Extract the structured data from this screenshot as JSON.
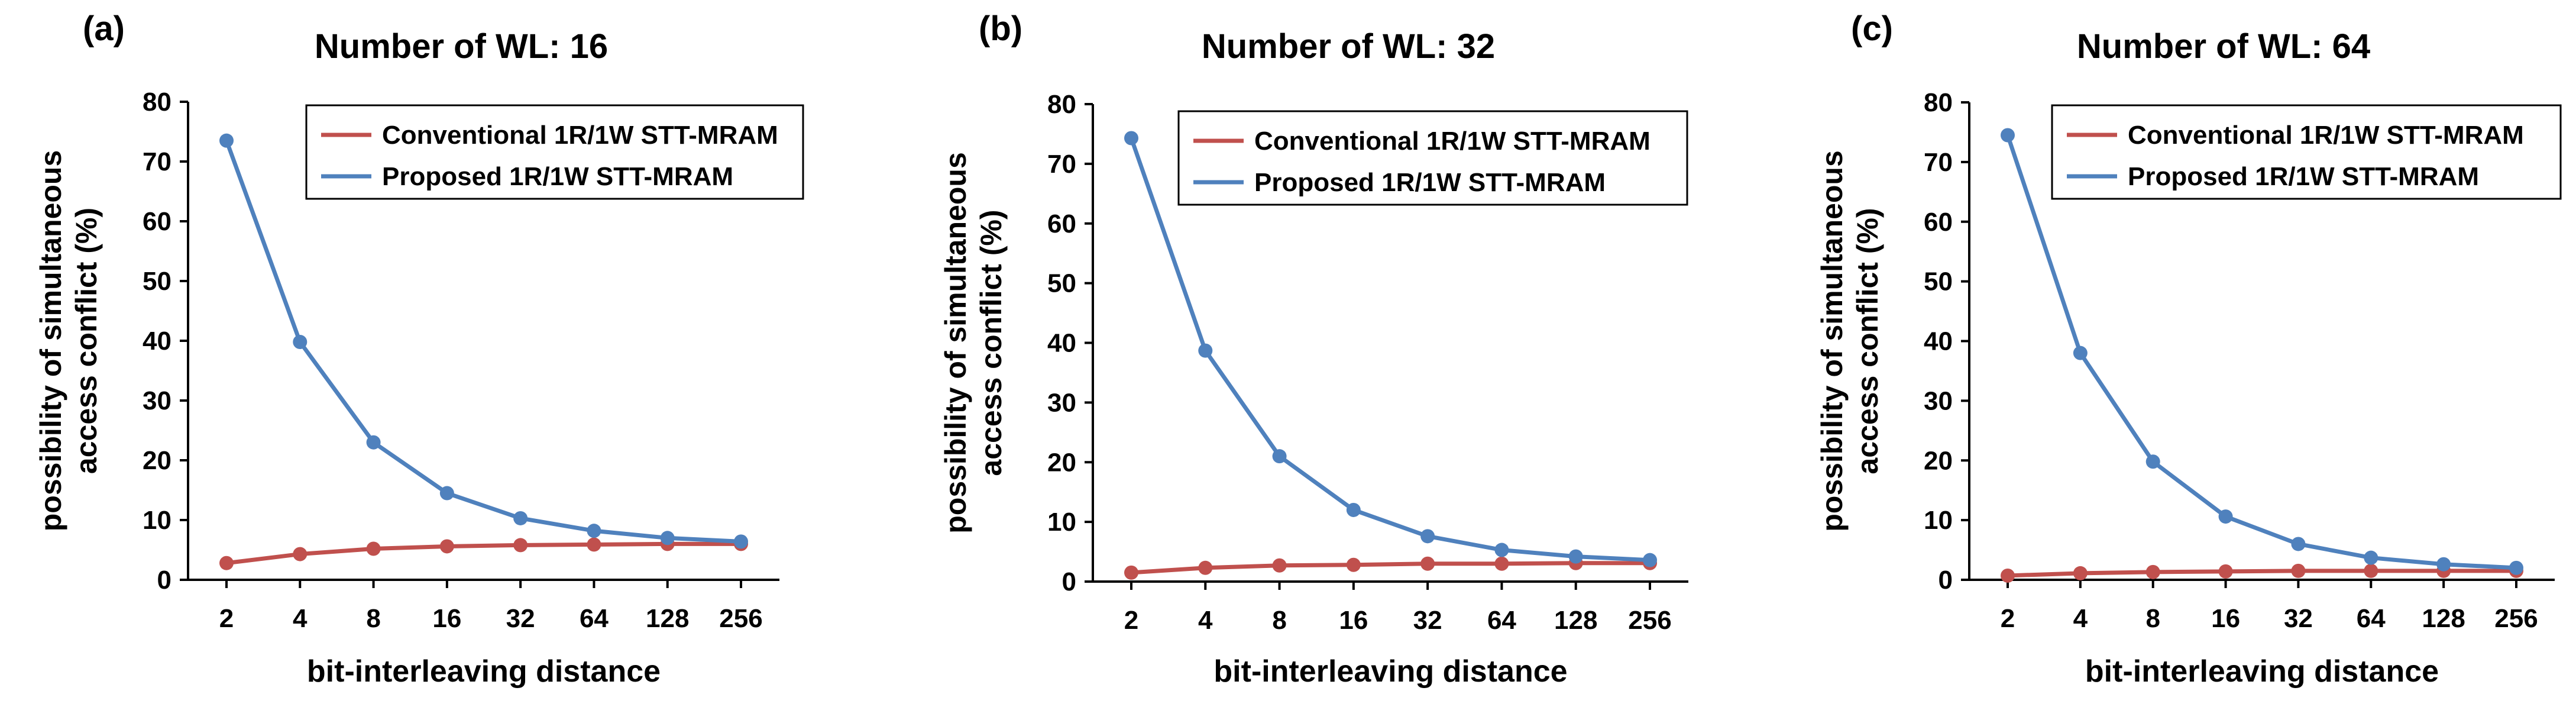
{
  "colors": {
    "conventional": "#c0504d",
    "proposed": "#4f81bd",
    "axis": "#000000"
  },
  "chart_data": [
    {
      "panel_label": "(a)",
      "type": "line",
      "title": "Number of WL: 16",
      "xlabel": "bit-interleaving distance",
      "ylabel_line1": "possibility of simultaneous",
      "ylabel_line2": "access conflict (%)",
      "categories": [
        "2",
        "4",
        "8",
        "16",
        "32",
        "64",
        "128",
        "256"
      ],
      "ylim": [
        0,
        80
      ],
      "yticks": [
        "0",
        "10",
        "20",
        "30",
        "40",
        "50",
        "60",
        "70",
        "80"
      ],
      "legend_position": "top-right",
      "series": [
        {
          "name": "Conventional 1R/1W STT-MRAM",
          "values": [
            2.8,
            4.3,
            5.2,
            5.6,
            5.8,
            5.9,
            6.0,
            6.0
          ]
        },
        {
          "name": "Proposed 1R/1W STT-MRAM",
          "values": [
            73.5,
            39.8,
            23.0,
            14.5,
            10.3,
            8.2,
            7.0,
            6.4
          ]
        }
      ]
    },
    {
      "panel_label": "(b)",
      "type": "line",
      "title": "Number of WL: 32",
      "xlabel": "bit-interleaving distance",
      "ylabel_line1": "possibility of simultaneous",
      "ylabel_line2": "access conflict (%)",
      "categories": [
        "2",
        "4",
        "8",
        "16",
        "32",
        "64",
        "128",
        "256"
      ],
      "ylim": [
        0,
        80
      ],
      "yticks": [
        "0",
        "10",
        "20",
        "30",
        "40",
        "50",
        "60",
        "70",
        "80"
      ],
      "legend_position": "top-right",
      "series": [
        {
          "name": "Conventional 1R/1W STT-MRAM",
          "values": [
            1.5,
            2.3,
            2.7,
            2.8,
            3.0,
            3.0,
            3.1,
            3.1
          ]
        },
        {
          "name": "Proposed 1R/1W STT-MRAM",
          "values": [
            74.3,
            38.7,
            21.0,
            12.0,
            7.6,
            5.3,
            4.2,
            3.6
          ]
        }
      ]
    },
    {
      "panel_label": "(c)",
      "type": "line",
      "title": "Number of WL: 64",
      "xlabel": "bit-interleaving distance",
      "ylabel_line1": "possibility of simultaneous",
      "ylabel_line2": "access conflict (%)",
      "categories": [
        "2",
        "4",
        "8",
        "16",
        "32",
        "64",
        "128",
        "256"
      ],
      "ylim": [
        0,
        80
      ],
      "yticks": [
        "0",
        "10",
        "20",
        "30",
        "40",
        "50",
        "60",
        "70",
        "80"
      ],
      "legend_position": "top-right",
      "series": [
        {
          "name": "Conventional 1R/1W STT-MRAM",
          "values": [
            0.7,
            1.1,
            1.3,
            1.4,
            1.5,
            1.5,
            1.5,
            1.5
          ]
        },
        {
          "name": "Proposed 1R/1W STT-MRAM",
          "values": [
            74.5,
            38.0,
            19.8,
            10.6,
            6.0,
            3.7,
            2.6,
            2.0
          ]
        }
      ]
    }
  ]
}
